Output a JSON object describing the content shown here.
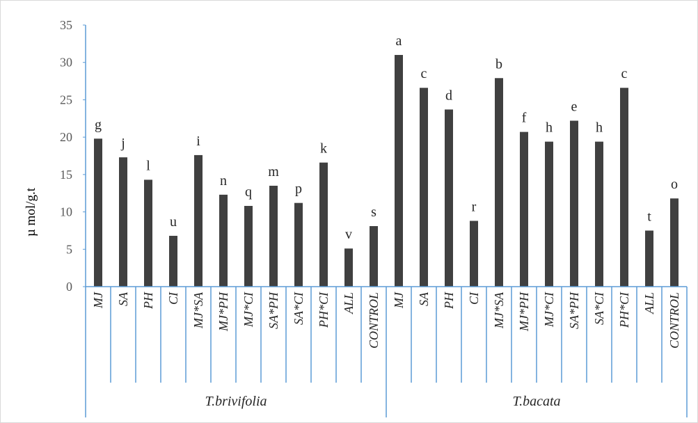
{
  "chart_data": {
    "type": "bar",
    "ylabel": "µ mol/g.t",
    "ylim": [
      0,
      35
    ],
    "yticks": [
      0,
      5,
      10,
      15,
      20,
      25,
      30,
      35
    ],
    "grid": false,
    "legend": "none",
    "groups": [
      {
        "name": "T.brivifolia",
        "categories": [
          "MJ",
          "SA",
          "PH",
          "CI",
          "MJ*SA",
          "MJ*PH",
          "MJ*CI",
          "SA*PH",
          "SA*CI",
          "PH*CI",
          "ALL",
          "CONTROL"
        ],
        "values": [
          19.8,
          17.3,
          14.3,
          6.8,
          17.6,
          12.3,
          10.8,
          13.5,
          11.2,
          16.6,
          5.1,
          8.1
        ],
        "labels": [
          "g",
          "j",
          "l",
          "u",
          "i",
          "n",
          "q",
          "m",
          "p",
          "k",
          "v",
          "s"
        ]
      },
      {
        "name": "T.bacata",
        "categories": [
          "MJ",
          "SA",
          "PH",
          "CI",
          "MJ*SA",
          "MJ*PH",
          "MJ*CI",
          "SA*PH",
          "SA*CI",
          "PH*CI",
          "ALL",
          "CONTROL"
        ],
        "values": [
          31.0,
          26.6,
          23.7,
          8.8,
          27.9,
          20.7,
          19.4,
          22.2,
          19.4,
          26.6,
          7.5,
          11.8
        ],
        "labels": [
          "a",
          "c",
          "d",
          "r",
          "b",
          "f",
          "h",
          "e",
          "h",
          "c",
          "t",
          "o"
        ]
      }
    ],
    "colors": {
      "bar": "#404040",
      "axis": "#5b9bd5",
      "frame": "#d9d9d9"
    }
  }
}
